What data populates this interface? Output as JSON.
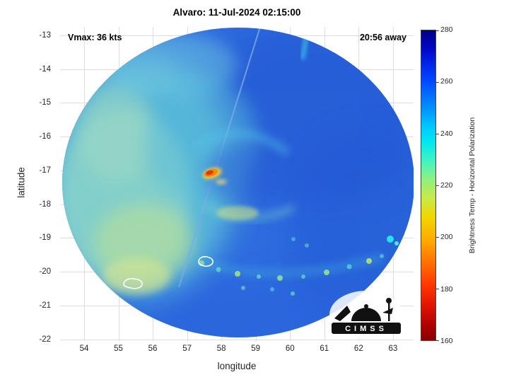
{
  "title": "Alvaro: 11-Jul-2024 02:15:00",
  "annotations": {
    "vmax": "Vmax: 36 kts",
    "time_away": "20:56 away"
  },
  "axes": {
    "xlabel": "longitude",
    "ylabel": "latitude",
    "x_ticks": [
      54,
      55,
      56,
      57,
      58,
      59,
      60,
      61,
      62,
      63
    ],
    "y_ticks": [
      -13,
      -14,
      -15,
      -16,
      -17,
      -18,
      -19,
      -20,
      -21,
      -22
    ]
  },
  "colorbar": {
    "label": "Brightness Temp - Horizontal Polarization",
    "min": 160,
    "max": 280,
    "ticks": [
      160,
      180,
      200,
      220,
      240,
      260,
      280
    ],
    "gradient": [
      "#000085 0%",
      "#0008c8 6%",
      "#0040ff 15%",
      "#0090ff 25%",
      "#00c8ff 31%",
      "#00e8f0 36%",
      "#40f4c0 42%",
      "#90f080 48%",
      "#c8ea48 54%",
      "#f0d800 60%",
      "#ffa800 68%",
      "#ff7000 75%",
      "#ff3800 82%",
      "#e01400 89%",
      "#a80000 96%",
      "#8b0000 100%"
    ]
  },
  "logo": {
    "text": "CIMSS"
  },
  "chart_data": {
    "type": "heatmap",
    "title": "Alvaro: 11-Jul-2024 02:15:00",
    "xlabel": "longitude",
    "ylabel": "latitude",
    "xlim": [
      53.3,
      63.6
    ],
    "ylim": [
      -22.05,
      -12.75
    ],
    "x_ticks": [
      54,
      55,
      56,
      57,
      58,
      59,
      60,
      61,
      62,
      63
    ],
    "y_ticks": [
      -13,
      -14,
      -15,
      -16,
      -17,
      -18,
      -19,
      -20,
      -21,
      -22
    ],
    "grid": true,
    "colorbar": {
      "label": "Brightness Temp - Horizontal Polarization",
      "min": 160,
      "max": 280,
      "ticks": [
        160,
        180,
        200,
        220,
        240,
        260,
        280
      ],
      "orientation": "vertical",
      "position": "right"
    },
    "swath": {
      "shape": "circular",
      "center_lon": 58.4,
      "center_lat": -17.4,
      "radius_deg": 5.1
    },
    "background_brightness_temp_k": [
      245,
      262
    ],
    "features": [
      {
        "name": "convective-hotspot",
        "lon": 57.8,
        "lat": -17.6,
        "tb_k": 190,
        "description": "small orange-red burst of deep convection near storm center with yellow fringe"
      },
      {
        "name": "cool-cyan-region",
        "lon_range": [
          53.6,
          56.6
        ],
        "lat_range": [
          -21.3,
          -13.8
        ],
        "tb_k": 235,
        "description": "broad lighter cyan/green area covering west side of swath"
      },
      {
        "name": "rainband-cells",
        "lat": -20.1,
        "lon_range": [
          56.3,
          63.2
        ],
        "tb_k": 225,
        "description": "arc of small green-cyan convective cells curving along about -20 latitude"
      },
      {
        "name": "white-contour-1",
        "lon": 57.5,
        "lat": -20.3
      },
      {
        "name": "white-contour-2",
        "lon": 55.5,
        "lat": -21.0
      },
      {
        "name": "scan-seam",
        "description": "diagonal swath seam running from about (58.9, -12.8) down to (56.7, -20.5)"
      },
      {
        "name": "bright-cyan-edge-cells",
        "lon": 63.0,
        "lat": -19.9,
        "tb_k": 230
      }
    ],
    "annotations": [
      {
        "text": "Vmax: 36 kts",
        "position": "top-left"
      },
      {
        "text": "20:56 away",
        "position": "top-right"
      }
    ]
  }
}
